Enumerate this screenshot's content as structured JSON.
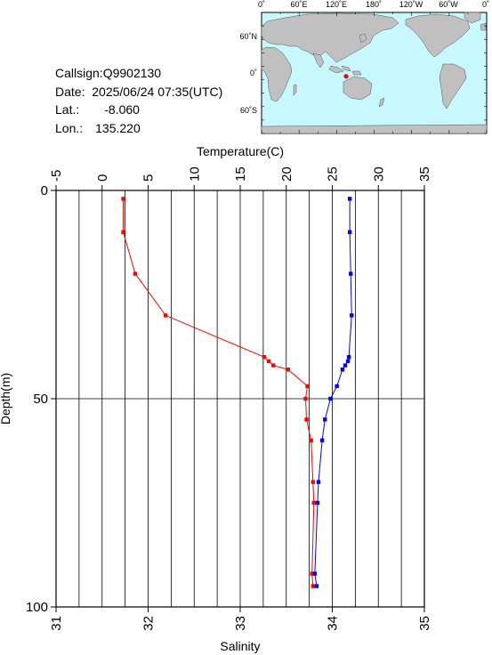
{
  "info": {
    "callsign": "Callsign:Q9902130",
    "date": "Date:  2025/06/24 07:35(UTC)",
    "lat_label": "Lat.:",
    "lat_value": "-8.060",
    "lon_label": "Lon.:",
    "lon_value": "135.220"
  },
  "map": {
    "top_ticks": [
      "0˚",
      "60˚E",
      "120˚E",
      "180˚",
      "120˚W",
      "60˚W",
      "0˚"
    ],
    "lat_ticks": [
      "60˚N",
      "0˚",
      "60˚S"
    ],
    "ocean_color": "#c8f8ff",
    "land_color": "#c0c0c0",
    "marker_color": "#ff0000",
    "marker_lon": 135.22,
    "marker_lat": -8.06
  },
  "chart_data": {
    "type": "line",
    "title": "",
    "top_axis_label": "Temperature(C)",
    "bottom_axis_label": "Salinity",
    "ylabel": "Depth(m)",
    "top_ticks": [
      "-5",
      "0",
      "5",
      "10",
      "15",
      "20",
      "25",
      "30",
      "35"
    ],
    "bottom_ticks": [
      "31",
      "32",
      "33",
      "34",
      "35"
    ],
    "y_ticks": [
      "0",
      "50",
      "100"
    ],
    "temperature_range": [
      -5,
      35
    ],
    "salinity_range": [
      31,
      35
    ],
    "depth_range": [
      0,
      100
    ],
    "series": [
      {
        "name": "Temperature",
        "axis": "temperature",
        "color": "#ff0000",
        "points": [
          {
            "depth": 2,
            "value": 2.3
          },
          {
            "depth": 10,
            "value": 2.3
          },
          {
            "depth": 20,
            "value": 3.6
          },
          {
            "depth": 30,
            "value": 6.9
          },
          {
            "depth": 40,
            "value": 17.6
          },
          {
            "depth": 41,
            "value": 18.1
          },
          {
            "depth": 42,
            "value": 18.6
          },
          {
            "depth": 43,
            "value": 20.2
          },
          {
            "depth": 47,
            "value": 22.3
          },
          {
            "depth": 50,
            "value": 22.1
          },
          {
            "depth": 55,
            "value": 22.2
          },
          {
            "depth": 60,
            "value": 22.7
          },
          {
            "depth": 70,
            "value": 22.9
          },
          {
            "depth": 75,
            "value": 23.0
          },
          {
            "depth": 92,
            "value": 22.8
          },
          {
            "depth": 95,
            "value": 22.9
          }
        ]
      },
      {
        "name": "Salinity",
        "axis": "salinity",
        "color": "#0000ff",
        "points": [
          {
            "depth": 2,
            "value": 34.19
          },
          {
            "depth": 10,
            "value": 34.19
          },
          {
            "depth": 20,
            "value": 34.2
          },
          {
            "depth": 30,
            "value": 34.21
          },
          {
            "depth": 40,
            "value": 34.18
          },
          {
            "depth": 41,
            "value": 34.17
          },
          {
            "depth": 42,
            "value": 34.14
          },
          {
            "depth": 43,
            "value": 34.11
          },
          {
            "depth": 47,
            "value": 34.05
          },
          {
            "depth": 50,
            "value": 33.98
          },
          {
            "depth": 55,
            "value": 33.92
          },
          {
            "depth": 60,
            "value": 33.89
          },
          {
            "depth": 70,
            "value": 33.85
          },
          {
            "depth": 75,
            "value": 33.84
          },
          {
            "depth": 92,
            "value": 33.81
          },
          {
            "depth": 95,
            "value": 33.83
          }
        ]
      }
    ]
  }
}
